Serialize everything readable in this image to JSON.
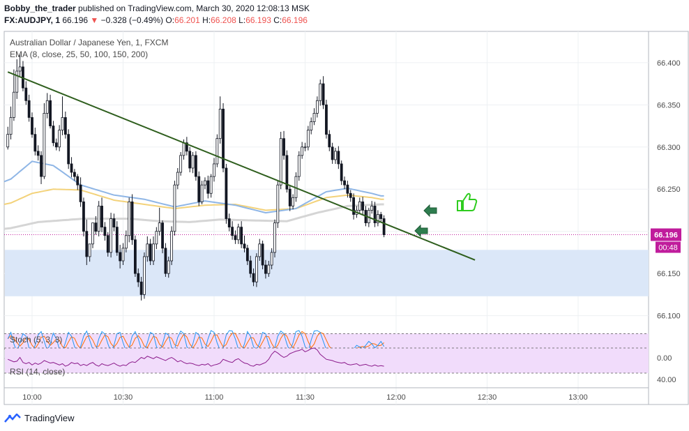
{
  "header": {
    "author": "Bobby_the_trader",
    "published_text": "published on TradingView.com, March 30, 2020 12:08:13 MSK",
    "symbol": "FX:AUDJPY, 1",
    "last": "66.196",
    "change_arrow": "▼",
    "change": "−0.328 (−0.49%)",
    "o_label": "O:",
    "o": "66.201",
    "h_label": "H:",
    "h": "66.208",
    "l_label": "L:",
    "l": "66.193",
    "c_label": "C:",
    "c": "66.196"
  },
  "legend": {
    "instrument": "Australian Dollar / Japanese Yen, 1, FXCM",
    "ema": "EMA (8, close, 25, 50, 100, 150, 200)",
    "stoch": "Stoch (5, 3, 3)",
    "rsi": "RSI (14, close)"
  },
  "price_tag": "66.196",
  "countdown_tag": "00:48",
  "brand": "TradingView",
  "colors": {
    "up": "#ffffff",
    "down": "#131722",
    "ema_fast": "#8fb6e6",
    "ema_mid": "#f3d27a",
    "ema_slow": "#d5d5d5",
    "trendline": "#2e5e1d",
    "zone": "#dbe7f8",
    "price_tag": "#c01c9c",
    "stoch_k": "#2196f3",
    "stoch_d": "#ff6d00",
    "rsi": "#8b1a8b",
    "indicator_bg": "#f1dcfb",
    "arrow": "#2e7d4f",
    "thumb": "#2ecc1e"
  },
  "icons": [
    "left-arrow-icon",
    "left-arrow-icon",
    "thumbs-up-icon",
    "tradingview-logo-icon"
  ],
  "chart_data": {
    "type": "candlestick",
    "price_axis": {
      "ticks": [
        "66.400",
        "66.350",
        "66.300",
        "66.250",
        "66.200",
        "66.150",
        "66.100"
      ],
      "range": [
        66.09,
        66.43
      ]
    },
    "time_axis": {
      "ticks": [
        "10:00",
        "10:30",
        "11:00",
        "11:30",
        "12:00",
        "12:30",
        "13:00"
      ]
    },
    "stoch_axis": {
      "ticks": [
        "0.00"
      ]
    },
    "rsi_axis": {
      "ticks": [
        "40.00"
      ]
    },
    "last_price": 66.196,
    "support_zone": [
      66.123,
      66.178
    ],
    "trendline": {
      "from": [
        "09:52",
        66.389
      ],
      "to": [
        "12:26",
        66.166
      ]
    },
    "ohlc": {
      "start": "09:52",
      "interval_min": 1,
      "o": [
        66.3,
        66.315,
        66.335,
        66.365,
        66.39,
        66.395,
        66.37,
        66.355,
        66.335,
        66.315,
        66.295,
        66.29,
        66.265,
        66.34,
        66.355,
        66.325,
        66.305,
        66.3,
        66.32,
        66.335,
        66.315,
        66.28,
        66.27,
        66.265,
        66.255,
        66.235,
        66.2,
        66.17,
        66.185,
        66.21,
        66.2,
        66.23,
        66.205,
        66.195,
        66.175,
        66.215,
        66.205,
        66.175,
        66.165,
        66.18,
        66.195,
        66.235,
        66.19,
        66.15,
        66.14,
        66.125,
        66.17,
        66.185,
        66.165,
        66.185,
        66.2,
        66.21,
        66.18,
        66.15,
        66.165,
        66.2,
        66.255,
        66.27,
        66.29,
        66.305,
        66.295,
        66.275,
        66.29,
        66.265,
        66.235,
        66.255,
        66.26,
        66.245,
        66.265,
        66.28,
        66.31,
        66.345,
        66.275,
        66.215,
        66.205,
        66.195,
        66.19,
        66.205,
        66.185,
        66.18,
        66.165,
        66.15,
        66.14,
        66.17,
        66.185,
        66.16,
        66.15,
        66.16,
        66.175,
        66.21,
        66.255,
        66.31,
        66.29,
        66.25,
        66.23,
        66.24,
        66.265,
        66.29,
        66.3,
        66.3,
        66.32,
        66.33,
        66.34,
        66.355,
        66.375,
        66.35,
        66.315,
        66.3,
        66.285,
        66.295,
        66.28,
        66.26,
        66.255,
        66.245,
        66.24,
        66.22,
        66.225,
        66.235,
        66.225,
        66.21,
        66.225,
        66.23,
        66.21,
        66.22,
        66.215
      ],
      "h": [
        66.324,
        66.348,
        66.392,
        66.404,
        66.41,
        66.402,
        66.378,
        66.362,
        66.341,
        66.323,
        66.302,
        66.295,
        66.352,
        66.364,
        66.362,
        66.331,
        66.31,
        66.326,
        66.36,
        66.342,
        66.321,
        66.288,
        66.274,
        66.268,
        66.264,
        66.24,
        66.214,
        66.184,
        66.206,
        66.218,
        66.236,
        66.24,
        66.211,
        66.199,
        66.222,
        66.221,
        66.212,
        66.184,
        66.186,
        66.201,
        66.24,
        66.244,
        66.195,
        66.156,
        66.146,
        66.175,
        66.194,
        66.191,
        66.194,
        66.205,
        66.228,
        66.213,
        66.186,
        66.17,
        66.206,
        66.26,
        66.275,
        66.294,
        66.309,
        66.312,
        66.3,
        66.294,
        66.295,
        66.271,
        66.26,
        66.264,
        66.266,
        66.268,
        66.287,
        66.315,
        66.36,
        66.352,
        66.28,
        66.221,
        66.212,
        66.201,
        66.209,
        66.212,
        66.195,
        66.184,
        66.171,
        66.156,
        66.174,
        66.191,
        66.189,
        66.166,
        66.165,
        66.18,
        66.214,
        66.26,
        66.318,
        66.319,
        66.296,
        66.255,
        66.244,
        66.27,
        66.295,
        66.306,
        66.305,
        66.325,
        66.335,
        66.346,
        66.36,
        66.38,
        66.384,
        66.356,
        66.32,
        66.305,
        66.299,
        66.301,
        66.284,
        66.265,
        66.26,
        66.249,
        66.245,
        66.23,
        66.24,
        66.241,
        66.23,
        66.228,
        66.236,
        66.235,
        66.225,
        66.223,
        66.219
      ],
      "l": [
        66.297,
        66.309,
        66.331,
        66.357,
        66.384,
        66.366,
        66.35,
        66.33,
        66.311,
        66.29,
        66.284,
        66.256,
        66.262,
        66.334,
        66.322,
        66.301,
        66.296,
        66.295,
        66.314,
        66.31,
        66.274,
        66.264,
        66.26,
        66.249,
        66.229,
        66.194,
        66.16,
        66.164,
        66.18,
        66.196,
        66.194,
        66.199,
        66.189,
        66.17,
        66.169,
        66.2,
        66.171,
        66.156,
        66.16,
        66.175,
        66.187,
        66.184,
        66.146,
        66.134,
        66.118,
        66.12,
        66.164,
        66.16,
        66.16,
        66.179,
        66.195,
        66.174,
        66.146,
        66.145,
        66.16,
        66.195,
        66.25,
        66.266,
        66.285,
        66.29,
        66.27,
        66.269,
        66.26,
        66.23,
        66.232,
        66.25,
        66.239,
        66.24,
        66.259,
        66.276,
        66.304,
        66.27,
        66.209,
        66.2,
        66.19,
        66.185,
        66.185,
        66.18,
        66.175,
        66.16,
        66.145,
        66.135,
        66.134,
        66.165,
        66.155,
        66.144,
        66.146,
        66.155,
        66.169,
        66.204,
        66.25,
        66.285,
        66.246,
        66.224,
        66.226,
        66.235,
        66.26,
        66.286,
        66.295,
        66.296,
        66.315,
        66.326,
        66.335,
        66.349,
        66.345,
        66.31,
        66.295,
        66.28,
        66.28,
        66.274,
        66.255,
        66.25,
        66.24,
        66.235,
        66.214,
        66.216,
        66.221,
        66.22,
        66.206,
        66.205,
        66.221,
        66.205,
        66.206,
        66.21,
        66.193
      ],
      "c": [
        66.315,
        66.335,
        66.365,
        66.39,
        66.395,
        66.37,
        66.355,
        66.335,
        66.315,
        66.295,
        66.29,
        66.265,
        66.34,
        66.355,
        66.325,
        66.305,
        66.3,
        66.32,
        66.335,
        66.315,
        66.28,
        66.27,
        66.265,
        66.255,
        66.235,
        66.2,
        66.17,
        66.185,
        66.21,
        66.2,
        66.23,
        66.205,
        66.195,
        66.175,
        66.215,
        66.205,
        66.175,
        66.165,
        66.18,
        66.195,
        66.235,
        66.19,
        66.15,
        66.14,
        66.125,
        66.17,
        66.185,
        66.165,
        66.185,
        66.2,
        66.21,
        66.18,
        66.15,
        66.165,
        66.2,
        66.255,
        66.27,
        66.29,
        66.305,
        66.295,
        66.275,
        66.29,
        66.265,
        66.235,
        66.255,
        66.26,
        66.245,
        66.265,
        66.28,
        66.31,
        66.345,
        66.275,
        66.215,
        66.205,
        66.195,
        66.19,
        66.205,
        66.185,
        66.18,
        66.165,
        66.15,
        66.14,
        66.17,
        66.185,
        66.16,
        66.15,
        66.16,
        66.175,
        66.21,
        66.255,
        66.31,
        66.29,
        66.25,
        66.23,
        66.24,
        66.265,
        66.29,
        66.3,
        66.3,
        66.32,
        66.33,
        66.34,
        66.355,
        66.375,
        66.35,
        66.315,
        66.3,
        66.285,
        66.295,
        66.28,
        66.26,
        66.255,
        66.245,
        66.24,
        66.22,
        66.225,
        66.235,
        66.225,
        66.21,
        66.225,
        66.23,
        66.21,
        66.22,
        66.215,
        66.196
      ]
    },
    "ema_anchors": {
      "fast": [
        [
          0,
          66.259
        ],
        [
          8,
          66.283
        ],
        [
          15,
          66.278
        ],
        [
          24,
          66.255
        ],
        [
          35,
          66.243
        ],
        [
          45,
          66.238
        ],
        [
          55,
          66.229
        ],
        [
          65,
          66.236
        ],
        [
          75,
          66.231
        ],
        [
          85,
          66.222
        ],
        [
          95,
          66.227
        ],
        [
          105,
          66.247
        ],
        [
          112,
          66.251
        ],
        [
          120,
          66.245
        ],
        [
          123,
          66.242
        ]
      ],
      "mid": [
        [
          0,
          66.232
        ],
        [
          8,
          66.245
        ],
        [
          15,
          66.25
        ],
        [
          24,
          66.249
        ],
        [
          35,
          66.237
        ],
        [
          45,
          66.232
        ],
        [
          55,
          66.227
        ],
        [
          65,
          66.231
        ],
        [
          75,
          66.232
        ],
        [
          85,
          66.225
        ],
        [
          95,
          66.227
        ],
        [
          105,
          66.24
        ],
        [
          112,
          66.243
        ],
        [
          120,
          66.24
        ],
        [
          123,
          66.238
        ]
      ],
      "slow": [
        [
          0,
          66.203
        ],
        [
          10,
          66.211
        ],
        [
          25,
          66.215
        ],
        [
          40,
          66.215
        ],
        [
          50,
          66.212
        ],
        [
          60,
          66.211
        ],
        [
          70,
          66.214
        ],
        [
          80,
          66.213
        ],
        [
          92,
          66.212
        ],
        [
          102,
          66.222
        ],
        [
          112,
          66.23
        ],
        [
          123,
          66.232
        ]
      ]
    },
    "stoch": {
      "k": [
        60,
        85,
        40,
        10,
        45,
        80,
        70,
        25,
        8,
        35,
        75,
        88,
        50,
        15,
        40,
        82,
        60,
        20,
        10,
        45,
        85,
        70,
        30,
        8,
        30,
        70,
        90,
        55,
        20,
        15,
        60,
        88,
        78,
        40,
        10,
        35,
        80,
        85,
        45,
        12,
        25,
        70,
        88,
        60,
        20,
        12,
        45,
        85,
        78,
        30,
        10,
        40,
        82,
        75,
        25,
        20,
        65,
        90,
        80,
        30,
        10,
        40,
        85,
        75,
        30,
        15,
        60,
        92,
        85,
        45,
        15,
        25,
        75,
        92,
        90,
        60,
        20,
        10,
        40,
        88,
        70,
        30,
        15,
        45,
        85,
        80,
        40,
        10,
        25,
        70,
        90,
        80,
        40,
        10,
        45,
        88,
        92,
        70,
        30,
        10,
        55,
        90,
        92,
        85,
        50,
        18,
        10,
        15,
        12,
        20,
        15,
        25,
        18,
        12,
        20,
        35,
        28,
        22,
        35,
        50,
        40,
        25,
        35,
        50,
        30
      ],
      "d": [
        60,
        72,
        62,
        45,
        32,
        45,
        65,
        58,
        35,
        22,
        40,
        66,
        70,
        51,
        35,
        45,
        60,
        55,
        30,
        25,
        48,
        68,
        62,
        36,
        22,
        45,
        68,
        72,
        55,
        30,
        32,
        55,
        75,
        68,
        42,
        28,
        42,
        66,
        70,
        47,
        27,
        36,
        62,
        72,
        57,
        32,
        26,
        48,
        70,
        65,
        39,
        27,
        50,
        68,
        62,
        37,
        32,
        58,
        78,
        67,
        40,
        24,
        42,
        67,
        63,
        40,
        30,
        50,
        75,
        75,
        50,
        28,
        38,
        65,
        82,
        81,
        57,
        30,
        24,
        45,
        65,
        63,
        38,
        27,
        48,
        70,
        68,
        42,
        22,
        35,
        62,
        80,
        70,
        42,
        25,
        48,
        75,
        88,
        80,
        50,
        25,
        40,
        70,
        85,
        80,
        55,
        30,
        20,
        17,
        15,
        16,
        18,
        20,
        18,
        17,
        22,
        28,
        30,
        28,
        32,
        42,
        40,
        33,
        35,
        45
      ],
      "upper": 80,
      "lower": 20
    },
    "rsi": {
      "values": [
        52,
        50,
        48,
        49,
        55,
        47,
        45,
        47,
        43,
        46,
        44,
        46,
        50,
        48,
        46,
        47,
        45,
        43,
        45,
        41,
        43,
        47,
        45,
        46,
        42,
        44,
        42,
        45,
        47,
        43,
        41,
        45,
        43,
        42,
        44,
        46,
        43,
        41,
        43,
        42,
        46,
        48,
        47,
        51,
        55,
        53,
        57,
        55,
        53,
        56,
        54,
        52,
        50,
        53,
        55,
        52,
        48,
        50,
        47,
        45,
        46,
        45,
        43,
        42,
        44,
        43,
        45,
        41,
        43,
        44,
        46,
        52,
        50,
        48,
        47,
        51,
        53,
        49,
        46,
        45,
        42,
        41,
        44,
        43,
        45,
        47,
        52,
        60,
        65,
        62,
        58,
        55,
        57,
        61,
        63,
        65,
        66,
        68,
        64,
        66,
        69,
        70,
        67,
        60,
        56,
        52,
        51,
        50,
        48,
        47,
        46,
        47,
        44,
        43,
        44,
        45,
        42,
        43,
        44,
        42,
        41,
        43,
        41,
        42,
        41
      ],
      "upper": 70,
      "lower": 30
    }
  }
}
